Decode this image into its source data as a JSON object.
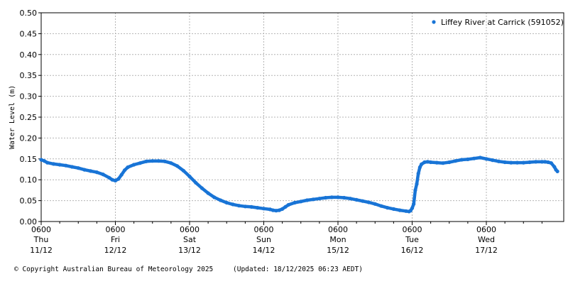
{
  "chart_data": {
    "type": "scatter",
    "title": "",
    "ylabel": "Water Level (m)",
    "xlabel": "",
    "ylim": [
      0,
      0.5
    ],
    "xlim": [
      "2025-12-11T06:00",
      "2025-12-18T05:00"
    ],
    "yticks": [
      "0.00",
      "0.05",
      "0.10",
      "0.15",
      "0.20",
      "0.25",
      "0.30",
      "0.35",
      "0.40",
      "0.45",
      "0.50"
    ],
    "xticks": [
      {
        "x": "2025-12-11T06:00",
        "time": "0600",
        "day": "Thu",
        "date": "11/12"
      },
      {
        "x": "2025-12-12T06:00",
        "time": "0600",
        "day": "Fri",
        "date": "12/12"
      },
      {
        "x": "2025-12-13T06:00",
        "time": "0600",
        "day": "Sat",
        "date": "13/12"
      },
      {
        "x": "2025-12-14T06:00",
        "time": "0600",
        "day": "Sun",
        "date": "14/12"
      },
      {
        "x": "2025-12-15T06:00",
        "time": "0600",
        "day": "Mon",
        "date": "15/12"
      },
      {
        "x": "2025-12-16T06:00",
        "time": "0600",
        "day": "Tue",
        "date": "16/12"
      },
      {
        "x": "2025-12-17T06:00",
        "time": "0600",
        "day": "Wed",
        "date": "17/12"
      }
    ],
    "grid": true,
    "legend_position": "top-right",
    "series": [
      {
        "name": "Liffey River at Carrick (591052)",
        "color": "#1874d6",
        "points": [
          [
            "2025-12-11T06:00",
            0.148
          ],
          [
            "2025-12-11T07:00",
            0.145
          ],
          [
            "2025-12-11T08:00",
            0.141
          ],
          [
            "2025-12-11T10:00",
            0.138
          ],
          [
            "2025-12-11T12:00",
            0.136
          ],
          [
            "2025-12-11T14:00",
            0.134
          ],
          [
            "2025-12-11T16:00",
            0.131
          ],
          [
            "2025-12-11T18:00",
            0.128
          ],
          [
            "2025-12-11T20:00",
            0.124
          ],
          [
            "2025-12-11T22:00",
            0.121
          ],
          [
            "2025-12-12T00:00",
            0.118
          ],
          [
            "2025-12-12T02:00",
            0.113
          ],
          [
            "2025-12-12T04:00",
            0.105
          ],
          [
            "2025-12-12T05:00",
            0.1
          ],
          [
            "2025-12-12T06:00",
            0.098
          ],
          [
            "2025-12-12T07:00",
            0.102
          ],
          [
            "2025-12-12T08:00",
            0.112
          ],
          [
            "2025-12-12T09:00",
            0.123
          ],
          [
            "2025-12-12T10:00",
            0.13
          ],
          [
            "2025-12-12T12:00",
            0.136
          ],
          [
            "2025-12-12T14:00",
            0.14
          ],
          [
            "2025-12-12T16:00",
            0.144
          ],
          [
            "2025-12-12T18:00",
            0.145
          ],
          [
            "2025-12-12T20:00",
            0.145
          ],
          [
            "2025-12-12T22:00",
            0.144
          ],
          [
            "2025-12-13T00:00",
            0.14
          ],
          [
            "2025-12-13T02:00",
            0.133
          ],
          [
            "2025-12-13T04:00",
            0.122
          ],
          [
            "2025-12-13T06:00",
            0.108
          ],
          [
            "2025-12-13T08:00",
            0.093
          ],
          [
            "2025-12-13T10:00",
            0.08
          ],
          [
            "2025-12-13T12:00",
            0.068
          ],
          [
            "2025-12-13T14:00",
            0.058
          ],
          [
            "2025-12-13T16:00",
            0.051
          ],
          [
            "2025-12-13T18:00",
            0.045
          ],
          [
            "2025-12-13T20:00",
            0.041
          ],
          [
            "2025-12-13T22:00",
            0.038
          ],
          [
            "2025-12-14T00:00",
            0.036
          ],
          [
            "2025-12-14T02:00",
            0.035
          ],
          [
            "2025-12-14T04:00",
            0.033
          ],
          [
            "2025-12-14T06:00",
            0.031
          ],
          [
            "2025-12-14T08:00",
            0.029
          ],
          [
            "2025-12-14T09:00",
            0.027
          ],
          [
            "2025-12-14T10:00",
            0.026
          ],
          [
            "2025-12-14T11:00",
            0.027
          ],
          [
            "2025-12-14T12:00",
            0.03
          ],
          [
            "2025-12-14T13:00",
            0.035
          ],
          [
            "2025-12-14T14:00",
            0.04
          ],
          [
            "2025-12-14T16:00",
            0.045
          ],
          [
            "2025-12-14T18:00",
            0.048
          ],
          [
            "2025-12-14T20:00",
            0.051
          ],
          [
            "2025-12-14T22:00",
            0.053
          ],
          [
            "2025-12-15T00:00",
            0.055
          ],
          [
            "2025-12-15T02:00",
            0.057
          ],
          [
            "2025-12-15T04:00",
            0.058
          ],
          [
            "2025-12-15T06:00",
            0.058
          ],
          [
            "2025-12-15T08:00",
            0.057
          ],
          [
            "2025-12-15T10:00",
            0.055
          ],
          [
            "2025-12-15T12:00",
            0.052
          ],
          [
            "2025-12-15T14:00",
            0.049
          ],
          [
            "2025-12-15T16:00",
            0.046
          ],
          [
            "2025-12-15T18:00",
            0.042
          ],
          [
            "2025-12-15T20:00",
            0.037
          ],
          [
            "2025-12-15T22:00",
            0.033
          ],
          [
            "2025-12-16T00:00",
            0.03
          ],
          [
            "2025-12-16T02:00",
            0.027
          ],
          [
            "2025-12-16T04:00",
            0.025
          ],
          [
            "2025-12-16T05:00",
            0.024
          ],
          [
            "2025-12-16T05:30",
            0.026
          ],
          [
            "2025-12-16T06:00",
            0.032
          ],
          [
            "2025-12-16T06:30",
            0.042
          ],
          [
            "2025-12-16T07:00",
            0.075
          ],
          [
            "2025-12-16T07:30",
            0.09
          ],
          [
            "2025-12-16T08:00",
            0.115
          ],
          [
            "2025-12-16T08:30",
            0.13
          ],
          [
            "2025-12-16T09:00",
            0.137
          ],
          [
            "2025-12-16T10:00",
            0.142
          ],
          [
            "2025-12-16T11:00",
            0.143
          ],
          [
            "2025-12-16T12:00",
            0.142
          ],
          [
            "2025-12-16T14:00",
            0.141
          ],
          [
            "2025-12-16T16:00",
            0.14
          ],
          [
            "2025-12-16T18:00",
            0.142
          ],
          [
            "2025-12-16T20:00",
            0.145
          ],
          [
            "2025-12-16T22:00",
            0.148
          ],
          [
            "2025-12-17T00:00",
            0.149
          ],
          [
            "2025-12-17T02:00",
            0.151
          ],
          [
            "2025-12-17T04:00",
            0.153
          ],
          [
            "2025-12-17T06:00",
            0.15
          ],
          [
            "2025-12-17T08:00",
            0.147
          ],
          [
            "2025-12-17T10:00",
            0.144
          ],
          [
            "2025-12-17T12:00",
            0.142
          ],
          [
            "2025-12-17T14:00",
            0.141
          ],
          [
            "2025-12-17T16:00",
            0.141
          ],
          [
            "2025-12-17T18:00",
            0.141
          ],
          [
            "2025-12-17T20:00",
            0.142
          ],
          [
            "2025-12-17T22:00",
            0.143
          ],
          [
            "2025-12-18T00:00",
            0.143
          ],
          [
            "2025-12-18T01:00",
            0.143
          ],
          [
            "2025-12-18T02:00",
            0.142
          ],
          [
            "2025-12-18T03:00",
            0.14
          ],
          [
            "2025-12-18T04:00",
            0.131
          ],
          [
            "2025-12-18T04:30",
            0.124
          ],
          [
            "2025-12-18T05:00",
            0.12
          ]
        ]
      }
    ]
  },
  "footer": {
    "copyright": "© Copyright Australian Bureau of Meteorology 2025",
    "updated": "(Updated: 18/12/2025 06:23 AEDT)"
  }
}
